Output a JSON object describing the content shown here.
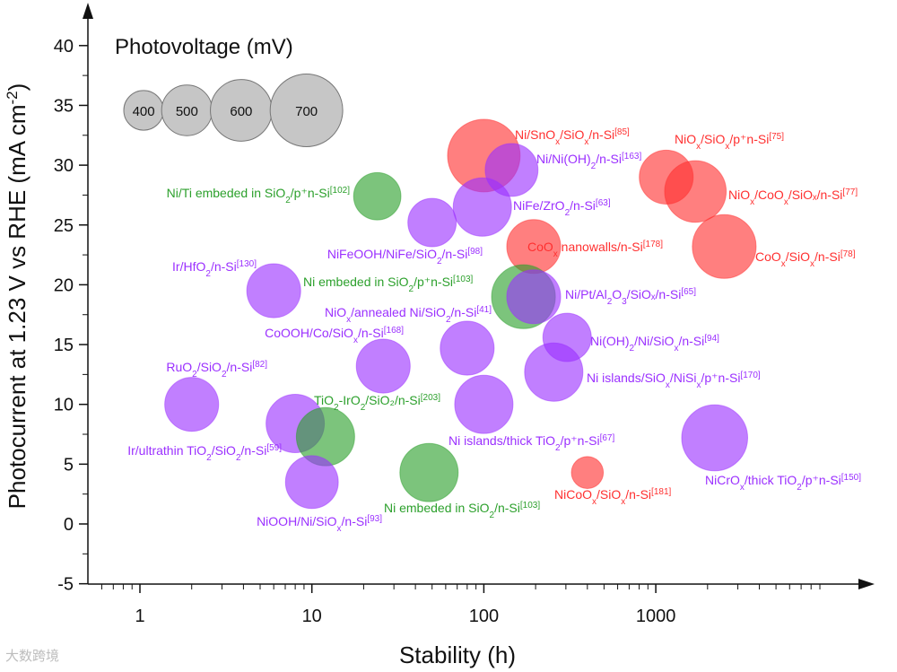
{
  "chart_data": {
    "type": "scatter",
    "subtype": "bubble",
    "xlabel": "Stability (h)",
    "ylabel": "Photocurrent at 1.23 V vs RHE (mA cm-2)",
    "xscale": "log",
    "xlim": [
      0.5,
      10000
    ],
    "ylim": [
      -5,
      44
    ],
    "x_ticks": [
      {
        "v": 1,
        "t": "1"
      },
      {
        "v": 10,
        "t": "10"
      },
      {
        "v": 100,
        "t": "100"
      },
      {
        "v": 1000,
        "t": "1000"
      }
    ],
    "y_ticks": [
      -5,
      0,
      5,
      10,
      15,
      20,
      25,
      30,
      35,
      40
    ],
    "legend": {
      "title": "Photovoltage (mV)",
      "sizes": [
        400,
        500,
        600,
        700
      ],
      "placement": "top-left"
    },
    "colors": {
      "green": "#2ca02c",
      "purple": "#9b30ff",
      "red": "#ff3030"
    },
    "points": [
      {
        "x": 100,
        "y": 30.8,
        "pv": 700,
        "color": "red",
        "pre": "Ni/SnO",
        "sub": "x",
        "mid": "/SiO",
        "sub2": "x",
        "post": "/n-Si",
        "ref": "[85]"
      },
      {
        "x": 145,
        "y": 29.6,
        "pv": 520,
        "color": "purple",
        "pre": "Ni/Ni(OH)",
        "sub": "2",
        "mid": "",
        "sub2": "",
        "post": "/n-Si",
        "ref": "[163]"
      },
      {
        "x": 1150,
        "y": 29.0,
        "pv": 530,
        "color": "red",
        "pre": "NiO",
        "sub": "x",
        "mid": "/SiO",
        "sub2": "x",
        "post": "/p⁺n-Si",
        "ref": "[75]"
      },
      {
        "x": 1700,
        "y": 27.8,
        "pv": 600,
        "color": "red",
        "pre": "NiO",
        "sub": "x",
        "mid": "/CoO",
        "sub2": "x",
        "post": "/SiOₓ/n-Si",
        "ref": "[77]"
      },
      {
        "x": 24,
        "y": 27.4,
        "pv": 470,
        "color": "green",
        "pre": "Ni/Ti embeded in SiO",
        "sub": "2",
        "mid": "",
        "sub2": "",
        "post": "/p⁺n-Si",
        "ref": "[102]"
      },
      {
        "x": 98,
        "y": 26.5,
        "pv": 570,
        "color": "purple",
        "pre": "NiFe/ZrO",
        "sub": "2",
        "mid": "",
        "sub2": "",
        "post": "/n-Si",
        "ref": "[63]"
      },
      {
        "x": 50,
        "y": 25.2,
        "pv": 480,
        "color": "purple",
        "pre": "NiFeOOH/NiFe/SiO",
        "sub": "2",
        "mid": "",
        "sub2": "",
        "post": "/n-Si",
        "ref": "[98]"
      },
      {
        "x": 195,
        "y": 23.2,
        "pv": 530,
        "color": "red",
        "pre": "CoO",
        "sub": "x",
        "mid": " nanowalls",
        "sub2": "",
        "post": "/n-Si",
        "ref": "[178]"
      },
      {
        "x": 2500,
        "y": 23.2,
        "pv": 620,
        "color": "red",
        "pre": "CoO",
        "sub": "x",
        "mid": "/SiO",
        "sub2": "x",
        "post": "/n-Si",
        "ref": "[78]"
      },
      {
        "x": 6,
        "y": 19.5,
        "pv": 530,
        "color": "purple",
        "pre": "Ir/HfO",
        "sub": "2",
        "mid": "",
        "sub2": "",
        "post": "/n-Si",
        "ref": "[130]"
      },
      {
        "x": 170,
        "y": 19.0,
        "pv": 620,
        "color": "green",
        "pre": "Ni embeded in SiO",
        "sub": "2",
        "mid": "",
        "sub2": "",
        "post": "/p⁺n-Si",
        "ref": "[103]"
      },
      {
        "x": 195,
        "y": 19.0,
        "pv": 530,
        "color": "purple",
        "pre": "Ni/Pt/Al",
        "sub": "2",
        "mid": "O",
        "sub2": "3",
        "post": "/SiOₓ/n-Si",
        "ref": "[65]"
      },
      {
        "x": 80,
        "y": 14.7,
        "pv": 530,
        "color": "purple",
        "pre": "NiO",
        "sub": "x",
        "mid": "/annealed Ni/SiO",
        "sub2": "2",
        "post": "/n-Si",
        "ref": "[41]"
      },
      {
        "x": 305,
        "y": 15.6,
        "pv": 480,
        "color": "purple",
        "pre": "Ni(OH)",
        "sub": "2",
        "mid": "/Ni/SiO",
        "sub2": "x",
        "post": "/n-Si",
        "ref": "[94]"
      },
      {
        "x": 26,
        "y": 13.2,
        "pv": 530,
        "color": "purple",
        "pre": "CoOOH/Co/SiO",
        "sub": "x",
        "mid": "",
        "sub2": "",
        "post": "/n-Si",
        "ref": "[168]"
      },
      {
        "x": 255,
        "y": 12.7,
        "pv": 570,
        "color": "purple",
        "pre": "Ni islands/SiO",
        "sub": "x",
        "mid": "/NiSi",
        "sub2": "x",
        "post": "/p⁺n-Si",
        "ref": "[170]"
      },
      {
        "x": 2,
        "y": 10.0,
        "pv": 530,
        "color": "purple",
        "pre": "RuO",
        "sub": "2",
        "mid": "/SiO",
        "sub2": "2",
        "post": "/n-Si",
        "ref": "[82]"
      },
      {
        "x": 100,
        "y": 10.0,
        "pv": 570,
        "color": "purple",
        "pre": "Ni islands/thick TiO",
        "sub": "2",
        "mid": "",
        "sub2": "",
        "post": "/p⁺n-Si",
        "ref": "[67]"
      },
      {
        "x": 8,
        "y": 8.4,
        "pv": 570,
        "color": "purple",
        "pre": "Ir/ultrathin TiO",
        "sub": "2",
        "mid": "/SiO",
        "sub2": "2",
        "post": "/n-Si",
        "ref": "[59]"
      },
      {
        "x": 12,
        "y": 7.3,
        "pv": 570,
        "color": "green",
        "pre": "TiO",
        "sub": "2",
        "mid": "-IrO",
        "sub2": "2",
        "post": "/SiO₂/n-Si",
        "ref": "[203]"
      },
      {
        "x": 2200,
        "y": 7.2,
        "pv": 640,
        "color": "purple",
        "pre": "NiCrO",
        "sub": "x",
        "mid": "/thick TiO",
        "sub2": "2",
        "post": "/p⁺n-Si",
        "ref": "[150]"
      },
      {
        "x": 48,
        "y": 4.3,
        "pv": 570,
        "color": "green",
        "pre": "Ni embeded in SiO",
        "sub": "2",
        "mid": "",
        "sub2": "",
        "post": "/n-Si",
        "ref": "[103]"
      },
      {
        "x": 400,
        "y": 4.3,
        "pv": 330,
        "color": "red",
        "pre": "NiCoO",
        "sub": "x",
        "mid": "/SiO",
        "sub2": "x",
        "post": "/n-Si",
        "ref": "[181]"
      },
      {
        "x": 10,
        "y": 3.5,
        "pv": 520,
        "color": "purple",
        "pre": "NiOOH/Ni/SiO",
        "sub": "x",
        "mid": "",
        "sub2": "",
        "post": "/n-Si",
        "ref": "[93]"
      }
    ]
  },
  "watermark": "大数跨境"
}
